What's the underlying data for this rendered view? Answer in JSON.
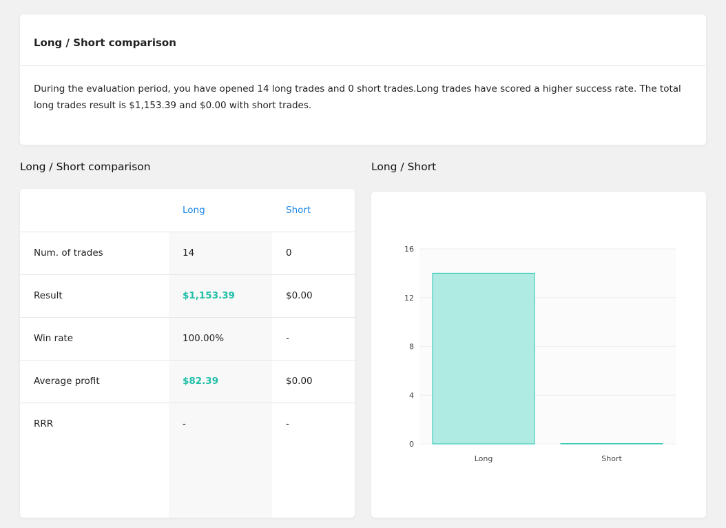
{
  "summary": {
    "title": "Long / Short comparison",
    "text": "During the evaluation period, you have opened 14 long trades and 0 short trades.Long trades have scored a higher success rate. The total long trades result is $1,153.39 and $0.00 with short trades."
  },
  "table_section": {
    "title": "Long / Short comparison",
    "headers": {
      "long": "Long",
      "short": "Short"
    },
    "rows": [
      {
        "label": "Num. of trades",
        "long": "14",
        "short": "0",
        "long_highlight": false
      },
      {
        "label": "Result",
        "long": "$1,153.39",
        "short": "$0.00",
        "long_highlight": true
      },
      {
        "label": "Win rate",
        "long": "100.00%",
        "short": "-",
        "long_highlight": false
      },
      {
        "label": "Average profit",
        "long": "$82.39",
        "short": "$0.00",
        "long_highlight": true
      },
      {
        "label": "RRR",
        "long": "-",
        "short": "-",
        "long_highlight": false
      }
    ]
  },
  "chart_section": {
    "title": "Long / Short"
  },
  "colors": {
    "accent_blue": "#1e88e5",
    "positive_green": "#1fbfa8",
    "bar_fill": "#b0ebe3",
    "bar_stroke": "#26c6b0"
  },
  "chart_data": {
    "type": "bar",
    "title": "Long / Short",
    "categories": [
      "Long",
      "Short"
    ],
    "values": [
      14,
      0
    ],
    "ylim": [
      0,
      16
    ],
    "yticks": [
      0,
      4,
      8,
      12,
      16
    ],
    "xlabel": "",
    "ylabel": "",
    "grid": true,
    "legend": "none"
  }
}
